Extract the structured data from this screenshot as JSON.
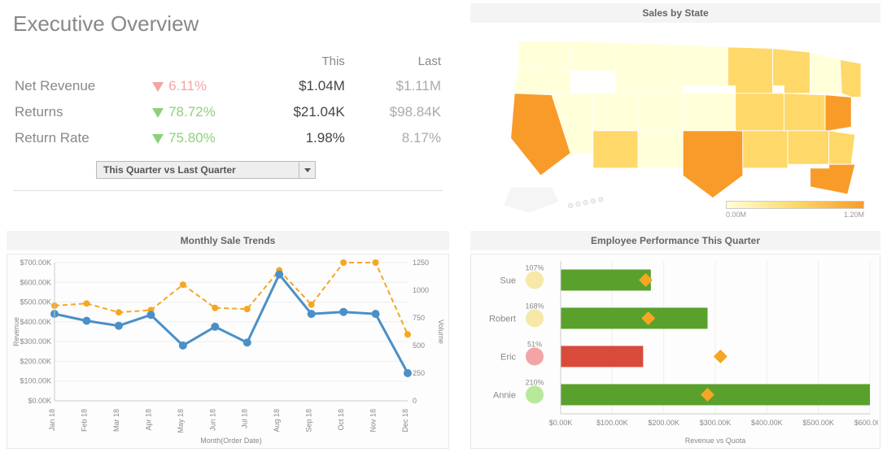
{
  "header": {
    "title": "Executive Overview"
  },
  "kpi": {
    "columns": {
      "change": "",
      "this": "This",
      "last": "Last"
    },
    "rows": [
      {
        "label": "Net Revenue",
        "dir": "down",
        "good": false,
        "pct": "6.11%",
        "this": "$1.04M",
        "last": "$1.11M"
      },
      {
        "label": "Returns",
        "dir": "down",
        "good": true,
        "pct": "78.72%",
        "this": "$21.04K",
        "last": "$98.84K"
      },
      {
        "label": "Return Rate",
        "dir": "down",
        "good": true,
        "pct": "75.80%",
        "this": "1.98%",
        "last": "8.17%"
      }
    ],
    "selector_label": "This Quarter vs Last Quarter"
  },
  "map": {
    "title": "Sales by State",
    "legend_min": "0.00M",
    "legend_max": "1.20M",
    "colors": {
      "low": "#ffffd9",
      "mid": "#ffd86a",
      "high": "#f89b29"
    }
  },
  "monthly": {
    "title": "Monthly Sale Trends",
    "x_title": "Month(Order Date)",
    "y_left_title": "Revenue",
    "y_right_title": "Volume",
    "y_left_ticks": [
      "$0.00K",
      "$100.00K",
      "$200.00K",
      "$300.00K",
      "$400.00K",
      "$500.00K",
      "$600.00K",
      "$700.00K"
    ],
    "y_right_ticks": [
      "0",
      "250",
      "500",
      "750",
      "1000",
      "1250"
    ],
    "y_left_max": 700,
    "y_right_max": 1250,
    "months": [
      "Jan 18",
      "Feb 18",
      "Mar 18",
      "Apr 18",
      "May 18",
      "Jun 18",
      "Jul 18",
      "Aug 18",
      "Sep 18",
      "Oct 18",
      "Nov 18",
      "Dec 18"
    ],
    "revenue": [
      440,
      405,
      380,
      435,
      280,
      375,
      295,
      640,
      440,
      450,
      440,
      140
    ],
    "volume": [
      860,
      880,
      800,
      820,
      1050,
      840,
      830,
      1180,
      870,
      1250,
      1250,
      600
    ],
    "rev_color": "#4a90c7",
    "vol_color": "#f5a623",
    "bg": "#fdfdfd"
  },
  "employee": {
    "title": "Employee Performance This Quarter",
    "x_title": "Revenue vs Quota",
    "x_ticks": [
      "$0.00K",
      "$100.00K",
      "$200.00K",
      "$300.00K",
      "$400.00K",
      "$500.00K",
      "$600.00K"
    ],
    "x_max": 600,
    "rows": [
      {
        "name": "Sue",
        "pct": "107%",
        "bar": 175,
        "quota": 165,
        "good": true,
        "dot": "#f6e8a6"
      },
      {
        "name": "Robert",
        "pct": "168%",
        "bar": 285,
        "quota": 170,
        "good": true,
        "dot": "#f6e8a6"
      },
      {
        "name": "Eric",
        "pct": "51%",
        "bar": 160,
        "quota": 310,
        "good": false,
        "dot": "#f3a4a4"
      },
      {
        "name": "Annie",
        "pct": "210%",
        "bar": 600,
        "quota": 285,
        "good": true,
        "dot": "#b8e89a"
      }
    ],
    "bar_good": "#5aa02c",
    "bar_bad": "#d84b3a",
    "marker": "#f5a623"
  }
}
